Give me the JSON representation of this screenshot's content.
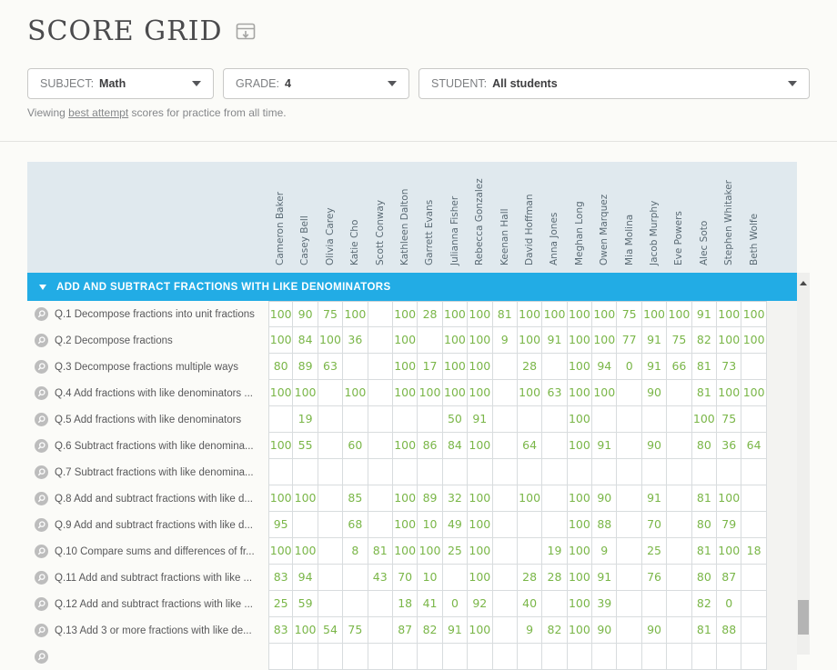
{
  "page": {
    "title": "SCORE GRID",
    "viewing_prefix": "Viewing",
    "viewing_link": "best attempt",
    "viewing_suffix": "scores for practice from all time."
  },
  "filters": [
    {
      "label": "SUBJECT:",
      "value": "Math"
    },
    {
      "label": "GRADE:",
      "value": "4"
    },
    {
      "label": "STUDENT:",
      "value": "All students"
    }
  ],
  "students": [
    "Cameron Baker",
    "Casey Bell",
    "Olivia Carey",
    "Katie Cho",
    "Scott Conway",
    "Kathleen Dalton",
    "Garrett Evans",
    "Julianna Fisher",
    "Rebecca Gonzalez",
    "Keenan Hall",
    "David Hoffman",
    "Anna Jones",
    "Meghan Long",
    "Owen Marquez",
    "Mia Molina",
    "Jacob Murphy",
    "Eve Powers",
    "Alec Soto",
    "Stephen Whitaker",
    "Beth Wolfe"
  ],
  "section": {
    "title": "ADD AND SUBTRACT FRACTIONS WITH LIKE DENOMINATORS",
    "state": "expanded"
  },
  "grid": {
    "rows": [
      {
        "label": "Q.1 Decompose fractions into unit fractions",
        "scores": [
          100,
          90,
          75,
          100,
          "",
          100,
          28,
          100,
          100,
          81,
          100,
          100,
          100,
          100,
          75,
          100,
          100,
          91,
          100,
          100
        ]
      },
      {
        "label": "Q.2 Decompose fractions",
        "scores": [
          100,
          84,
          100,
          36,
          "",
          100,
          "",
          100,
          100,
          9,
          100,
          91,
          100,
          100,
          77,
          91,
          75,
          82,
          100,
          100
        ]
      },
      {
        "label": "Q.3 Decompose fractions multiple ways",
        "scores": [
          80,
          89,
          63,
          "",
          "",
          100,
          17,
          100,
          100,
          "",
          28,
          "",
          100,
          94,
          0,
          91,
          66,
          81,
          73,
          ""
        ]
      },
      {
        "label": "Q.4 Add fractions with like denominators ...",
        "scores": [
          100,
          100,
          "",
          100,
          "",
          100,
          100,
          100,
          100,
          "",
          100,
          63,
          100,
          100,
          "",
          90,
          "",
          81,
          100,
          100
        ]
      },
      {
        "label": "Q.5 Add fractions with like denominators",
        "scores": [
          "",
          19,
          "",
          "",
          "",
          "",
          "",
          50,
          91,
          "",
          "",
          "",
          100,
          "",
          "",
          "",
          "",
          100,
          75,
          ""
        ]
      },
      {
        "label": "Q.6 Subtract fractions with like denomina...",
        "scores": [
          100,
          55,
          "",
          60,
          "",
          100,
          86,
          84,
          100,
          "",
          64,
          "",
          100,
          91,
          "",
          90,
          "",
          80,
          36,
          64
        ]
      },
      {
        "label": "Q.7 Subtract fractions with like denomina...",
        "scores": [
          "",
          "",
          "",
          "",
          "",
          "",
          "",
          "",
          "",
          "",
          "",
          "",
          "",
          "",
          "",
          "",
          "",
          "",
          "",
          ""
        ]
      },
      {
        "label": "Q.8 Add and subtract fractions with like d...",
        "scores": [
          100,
          100,
          "",
          85,
          "",
          100,
          89,
          32,
          100,
          "",
          100,
          "",
          100,
          90,
          "",
          91,
          "",
          81,
          100,
          ""
        ]
      },
      {
        "label": "Q.9 Add and subtract fractions with like d...",
        "scores": [
          95,
          "",
          "",
          68,
          "",
          100,
          10,
          49,
          100,
          "",
          "",
          "",
          100,
          88,
          "",
          70,
          "",
          80,
          79,
          ""
        ]
      },
      {
        "label": "Q.10 Compare sums and differences of fr...",
        "scores": [
          100,
          100,
          "",
          8,
          81,
          100,
          100,
          25,
          100,
          "",
          "",
          19,
          100,
          9,
          "",
          25,
          "",
          81,
          100,
          18
        ]
      },
      {
        "label": "Q.11 Add and subtract fractions with like ...",
        "scores": [
          83,
          94,
          "",
          "",
          43,
          70,
          10,
          "",
          100,
          "",
          28,
          28,
          100,
          91,
          "",
          76,
          "",
          80,
          87,
          ""
        ]
      },
      {
        "label": "Q.12 Add and subtract fractions with like ...",
        "scores": [
          25,
          59,
          "",
          "",
          "",
          18,
          41,
          0,
          92,
          "",
          40,
          "",
          100,
          39,
          "",
          "",
          "",
          82,
          0,
          ""
        ]
      },
      {
        "label": "Q.13 Add 3 or more fractions with like de...",
        "scores": [
          83,
          100,
          54,
          75,
          "",
          87,
          82,
          91,
          100,
          "",
          9,
          82,
          100,
          90,
          "",
          90,
          "",
          81,
          88,
          ""
        ]
      }
    ]
  },
  "colors": {
    "accent_blue": "#22ace5",
    "score_green": "#7ab648",
    "header_band": "#e0e9ee"
  }
}
